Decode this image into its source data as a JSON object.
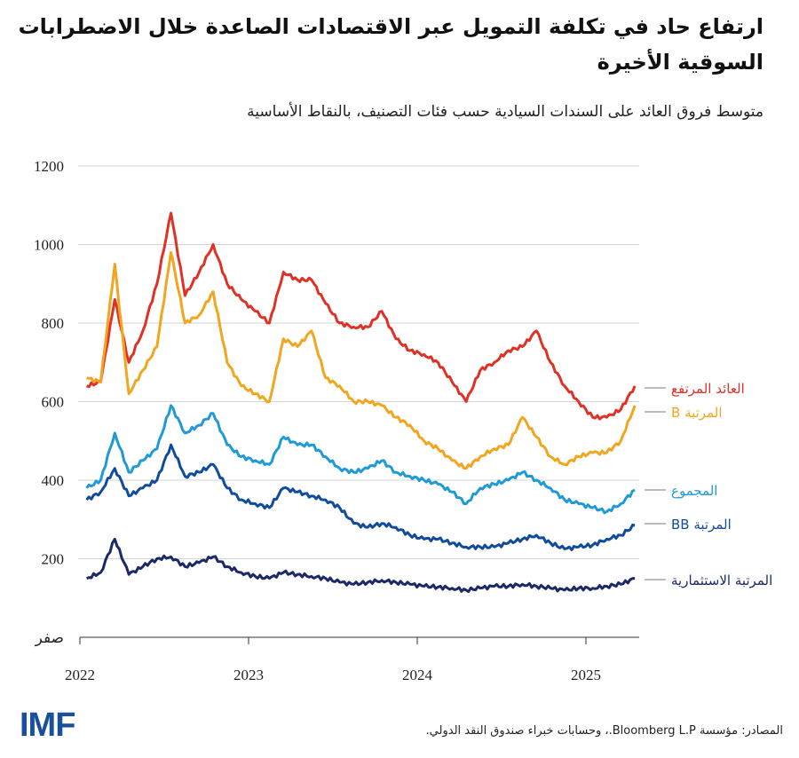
{
  "title": "ارتفاع حاد في تكلفة التمويل عبر الاقتصادات الصاعدة خلال الاضطرابات السوقية الأخيرة",
  "subtitle": "متوسط فروق العائد على السندات السيادية حسب فئات التصنيف، بالنقاط الأساسية",
  "source": "المصادر: مؤسسة Bloomberg L.P.، وحسابات خبراء صندوق النقد الدولي.",
  "logo": "IMF",
  "chart_data": {
    "type": "line",
    "title": "ارتفاع حاد في تكلفة التمويل عبر الاقتصادات الصاعدة خلال الاضطرابات السوقية الأخيرة",
    "subtitle": "متوسط فروق العائد على السندات السيادية حسب فئات التصنيف، بالنقاط الأساسية",
    "xlabel": "",
    "ylabel": "",
    "ylim": [
      0,
      1200
    ],
    "yticks": [
      {
        "v": 0,
        "label": "صفر"
      },
      {
        "v": 200,
        "label": "200"
      },
      {
        "v": 400,
        "label": "400"
      },
      {
        "v": 600,
        "label": "600"
      },
      {
        "v": 800,
        "label": "800"
      },
      {
        "v": 1000,
        "label": "1000"
      },
      {
        "v": 1200,
        "label": "1200"
      }
    ],
    "xticks": [
      "2022",
      "2023",
      "2024",
      "2025"
    ],
    "grid": "horizontal",
    "legend": "right, labels at line ends",
    "x": [
      "2022-01",
      "2022-02",
      "2022-03",
      "2022-04",
      "2022-05",
      "2022-06",
      "2022-07",
      "2022-08",
      "2022-09",
      "2022-10",
      "2022-11",
      "2022-12",
      "2023-01",
      "2023-02",
      "2023-03",
      "2023-04",
      "2023-05",
      "2023-06",
      "2023-07",
      "2023-08",
      "2023-09",
      "2023-10",
      "2023-11",
      "2023-12",
      "2024-01",
      "2024-02",
      "2024-03",
      "2024-04",
      "2024-05",
      "2024-06",
      "2024-07",
      "2024-08",
      "2024-09",
      "2024-10",
      "2024-11",
      "2024-12",
      "2025-01",
      "2025-02",
      "2025-03",
      "2025-04"
    ],
    "series": [
      {
        "name": "العائد المرتفع",
        "color": "#e03127",
        "values": [
          640,
          650,
          860,
          700,
          780,
          900,
          1080,
          870,
          930,
          1000,
          900,
          860,
          830,
          800,
          930,
          910,
          910,
          850,
          800,
          790,
          790,
          830,
          760,
          730,
          720,
          700,
          650,
          600,
          680,
          700,
          730,
          740,
          780,
          700,
          640,
          600,
          560,
          560,
          580,
          640
        ]
      },
      {
        "name": "المرتبة B",
        "color": "#f2a51f",
        "values": [
          660,
          650,
          950,
          620,
          680,
          740,
          980,
          800,
          820,
          880,
          700,
          640,
          620,
          600,
          760,
          740,
          780,
          660,
          640,
          600,
          600,
          590,
          560,
          540,
          500,
          480,
          450,
          430,
          460,
          480,
          490,
          560,
          510,
          460,
          440,
          460,
          470,
          470,
          500,
          590
        ]
      },
      {
        "name": "المجموع",
        "color": "#1f9ad6",
        "values": [
          380,
          400,
          520,
          420,
          450,
          480,
          590,
          520,
          540,
          570,
          490,
          460,
          450,
          440,
          510,
          490,
          490,
          460,
          430,
          420,
          430,
          450,
          420,
          410,
          400,
          390,
          370,
          340,
          380,
          390,
          400,
          420,
          400,
          380,
          350,
          340,
          330,
          320,
          340,
          375
        ]
      },
      {
        "name": "المرتبة BB",
        "color": "#114c9c",
        "values": [
          350,
          370,
          430,
          360,
          380,
          400,
          490,
          410,
          420,
          440,
          380,
          350,
          340,
          330,
          380,
          370,
          360,
          350,
          330,
          290,
          280,
          290,
          280,
          260,
          250,
          250,
          240,
          230,
          230,
          230,
          240,
          250,
          260,
          240,
          225,
          230,
          235,
          250,
          260,
          285
        ]
      },
      {
        "name": "المرتبة الاستثمارية",
        "color": "#1b2a66",
        "values": [
          150,
          165,
          250,
          160,
          180,
          200,
          205,
          180,
          190,
          205,
          180,
          165,
          155,
          150,
          165,
          160,
          155,
          150,
          140,
          135,
          140,
          145,
          140,
          135,
          130,
          128,
          125,
          120,
          125,
          130,
          130,
          135,
          130,
          125,
          120,
          125,
          125,
          130,
          135,
          150
        ]
      }
    ]
  }
}
